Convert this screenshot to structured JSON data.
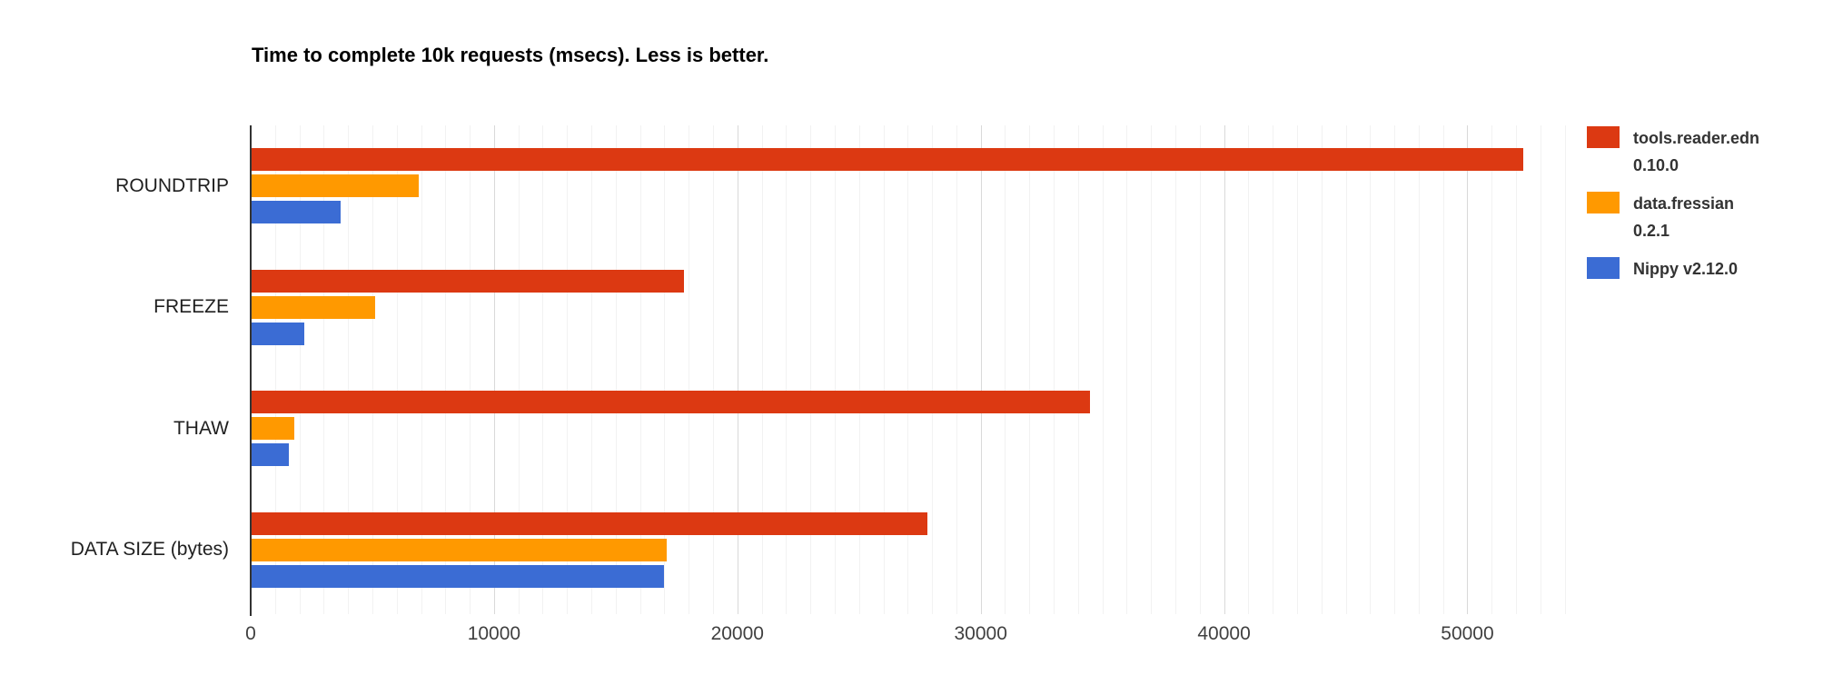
{
  "title": "Time to complete 10k requests (msecs). Less is better.",
  "chart_data": {
    "type": "bar",
    "orientation": "horizontal",
    "title": "Time to complete 10k requests (msecs). Less is better.",
    "categories": [
      "ROUNDTRIP",
      "FREEZE",
      "THAW",
      "DATA SIZE (bytes)"
    ],
    "series": [
      {
        "name": "tools.reader.edn 0.10.0",
        "label_lines": [
          "tools.reader.edn",
          "0.10.0"
        ],
        "color": "#DC3912",
        "values": [
          52300,
          17800,
          34500,
          27800
        ]
      },
      {
        "name": "data.fressian 0.2.1",
        "label_lines": [
          "data.fressian",
          "0.2.1"
        ],
        "color": "#FF9900",
        "values": [
          6900,
          5100,
          1800,
          17100
        ]
      },
      {
        "name": "Nippy v2.12.0",
        "label_lines": [
          "Nippy v2.12.0"
        ],
        "color": "#3B6CD4",
        "values": [
          3700,
          2200,
          1550,
          17000
        ]
      }
    ],
    "xlabel": "",
    "ylabel": "",
    "x_ticks": [
      0,
      10000,
      20000,
      30000,
      40000,
      50000
    ],
    "x_tick_labels": [
      "0",
      "10000",
      "20000",
      "30000",
      "40000",
      "50000"
    ],
    "xlim": [
      0,
      54200
    ],
    "minor_grid_step": 1000,
    "major_grid_step": 10000,
    "grid": true,
    "legend_position": "right",
    "axis_line_color": "#333333",
    "major_grid_color": "#d9d9d9",
    "minor_grid_color": "#f2f2f2",
    "background_color": "#ffffff"
  }
}
